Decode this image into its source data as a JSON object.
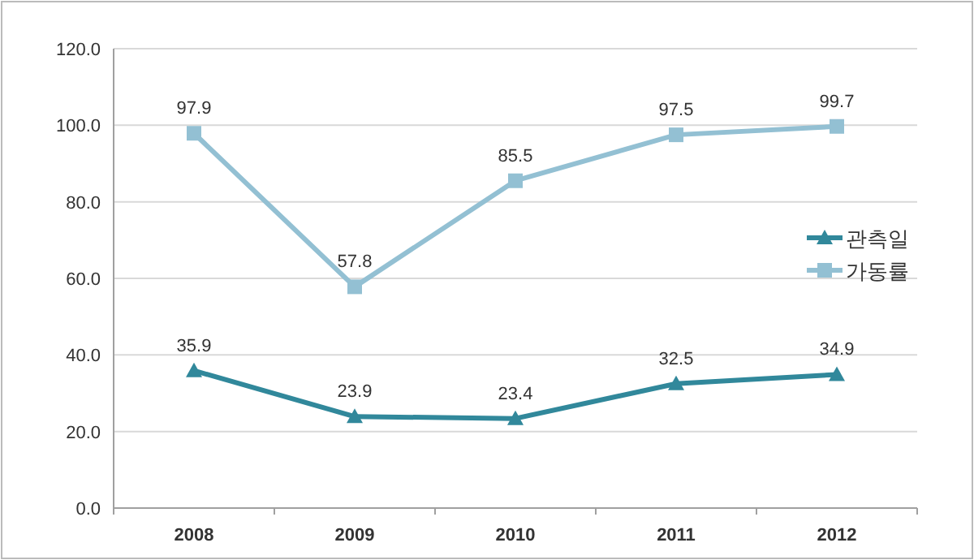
{
  "chart_data": {
    "type": "line",
    "categories": [
      "2008",
      "2009",
      "2010",
      "2011",
      "2012"
    ],
    "series": [
      {
        "name": "관측일",
        "color": "#31889b",
        "marker": "triangle",
        "values": [
          35.9,
          23.9,
          23.4,
          32.5,
          34.9
        ]
      },
      {
        "name": "가동률",
        "color": "#93c0d3",
        "marker": "square",
        "values": [
          97.9,
          57.8,
          85.5,
          97.5,
          99.7
        ]
      }
    ],
    "ylim": [
      0,
      120
    ],
    "yticks": [
      {
        "value": 0,
        "label": "0.0"
      },
      {
        "value": 20,
        "label": "20.0"
      },
      {
        "value": 40,
        "label": "40.0"
      },
      {
        "value": 60,
        "label": "60.0"
      },
      {
        "value": 80,
        "label": "80.0"
      },
      {
        "value": 100,
        "label": "100.0"
      },
      {
        "value": 120,
        "label": "120.0"
      }
    ],
    "grid": "y",
    "legend": "right",
    "data_labels": true,
    "line_style": "solid"
  }
}
